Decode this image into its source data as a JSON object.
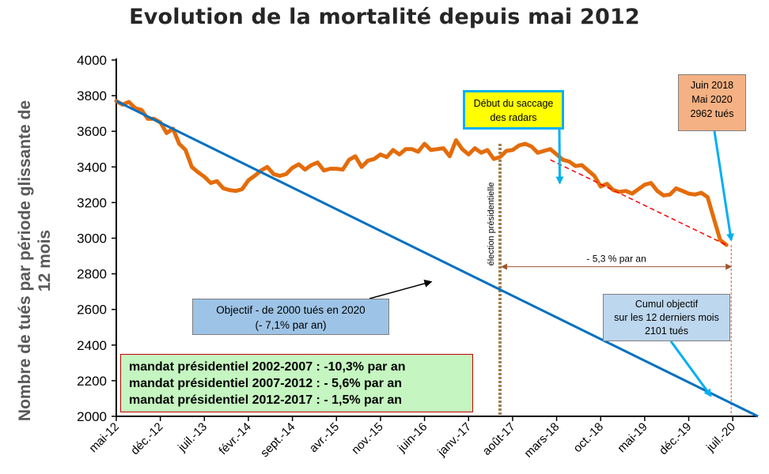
{
  "chart_data": {
    "type": "line",
    "title": "Evolution de la mortalité depuis mai 2012",
    "ylabel": "Nombre de tués par période  glissante de 12 mois",
    "xlabel": "",
    "ylim": [
      2000,
      4000
    ],
    "yticks": [
      2000,
      2200,
      2400,
      2600,
      2800,
      3000,
      3200,
      3400,
      3600,
      3800,
      4000
    ],
    "x_tick_labels": [
      "mai-12",
      "déc.-12",
      "juil.-13",
      "févr.-14",
      "sept.-14",
      "avr.-15",
      "nov.-15",
      "juin-16",
      "janv.-17",
      "août-17",
      "mars-18",
      "oct.-18",
      "mai-19",
      "déc.-19",
      "juil.-20"
    ],
    "x_tick_months": [
      0,
      7,
      14,
      21,
      28,
      35,
      42,
      49,
      56,
      63,
      70,
      77,
      84,
      91,
      98
    ],
    "xlim_months": [
      0,
      102
    ],
    "grid": false,
    "series": [
      {
        "type": "actual",
        "color": "#e46c0a",
        "x_months": [
          0,
          1,
          2,
          3,
          4,
          5,
          6,
          7,
          8,
          9,
          10,
          11,
          12,
          13,
          14,
          15,
          16,
          17,
          18,
          19,
          20,
          21,
          22,
          23,
          24,
          25,
          26,
          27,
          28,
          29,
          30,
          31,
          32,
          33,
          34,
          35,
          36,
          37,
          38,
          39,
          40,
          41,
          42,
          43,
          44,
          45,
          46,
          47,
          48,
          49,
          50,
          51,
          52,
          53,
          54,
          55,
          56,
          57,
          58,
          59,
          60,
          61,
          62,
          63,
          64,
          65,
          66,
          67,
          68,
          69,
          70,
          71,
          72,
          73,
          74,
          75,
          76,
          77,
          78,
          79,
          80,
          81,
          82,
          83,
          84,
          85,
          86,
          87,
          88,
          89,
          90,
          91,
          92,
          93,
          94,
          95,
          96,
          97
        ],
        "values": [
          3770,
          3750,
          3765,
          3730,
          3720,
          3670,
          3670,
          3650,
          3590,
          3615,
          3530,
          3495,
          3400,
          3370,
          3345,
          3310,
          3320,
          3280,
          3270,
          3265,
          3275,
          3325,
          3350,
          3380,
          3400,
          3360,
          3350,
          3360,
          3395,
          3415,
          3385,
          3410,
          3425,
          3380,
          3390,
          3390,
          3385,
          3440,
          3460,
          3400,
          3435,
          3445,
          3470,
          3455,
          3495,
          3470,
          3500,
          3500,
          3485,
          3530,
          3495,
          3500,
          3505,
          3460,
          3550,
          3500,
          3470,
          3505,
          3480,
          3495,
          3445,
          3455,
          3490,
          3495,
          3520,
          3530,
          3515,
          3480,
          3490,
          3500,
          3470,
          3440,
          3430,
          3405,
          3410,
          3380,
          3350,
          3290,
          3305,
          3270,
          3260,
          3265,
          3250,
          3275,
          3300,
          3310,
          3265,
          3240,
          3245,
          3280,
          3265,
          3250,
          3245,
          3255,
          3230,
          3110,
          2990,
          2962
        ]
      },
      {
        "type": "objectif",
        "color": "#0070c0",
        "x_months": [
          0,
          102
        ],
        "values": [
          3770,
          2000
        ]
      },
      {
        "type": "trend",
        "color": "#ff0000",
        "dashed": true,
        "x_months": [
          69,
          97
        ],
        "values": [
          3440,
          2962
        ]
      }
    ],
    "vertical_lines": [
      {
        "x_month": 61,
        "label": "élection présidentielle",
        "color": "#a08050"
      },
      {
        "x_month": 98,
        "label": "",
        "color": "#c0504d"
      }
    ],
    "annotations": {
      "arrow_label": "- 5,3 % par an",
      "objectif_lines": [
        "Objectif - de 2000 tués en 2020",
        "(- 7,1% par an)"
      ],
      "saccage_lines": [
        "Début du saccage",
        "des radars"
      ],
      "juin_lines": [
        "Juin 2018",
        "Mai 2020",
        "2962 tués"
      ],
      "cumul_lines": [
        "Cumul objectif",
        "sur les 12 derniers mois",
        "2101 tués"
      ],
      "mandats": [
        "mandat présidentiel 2002-2007 : -10,3% par an",
        "mandat présidentiel 2007-2012 : - 5,6% par an",
        "mandat présidentiel 2012-2017 : - 1,5% par an"
      ]
    }
  }
}
